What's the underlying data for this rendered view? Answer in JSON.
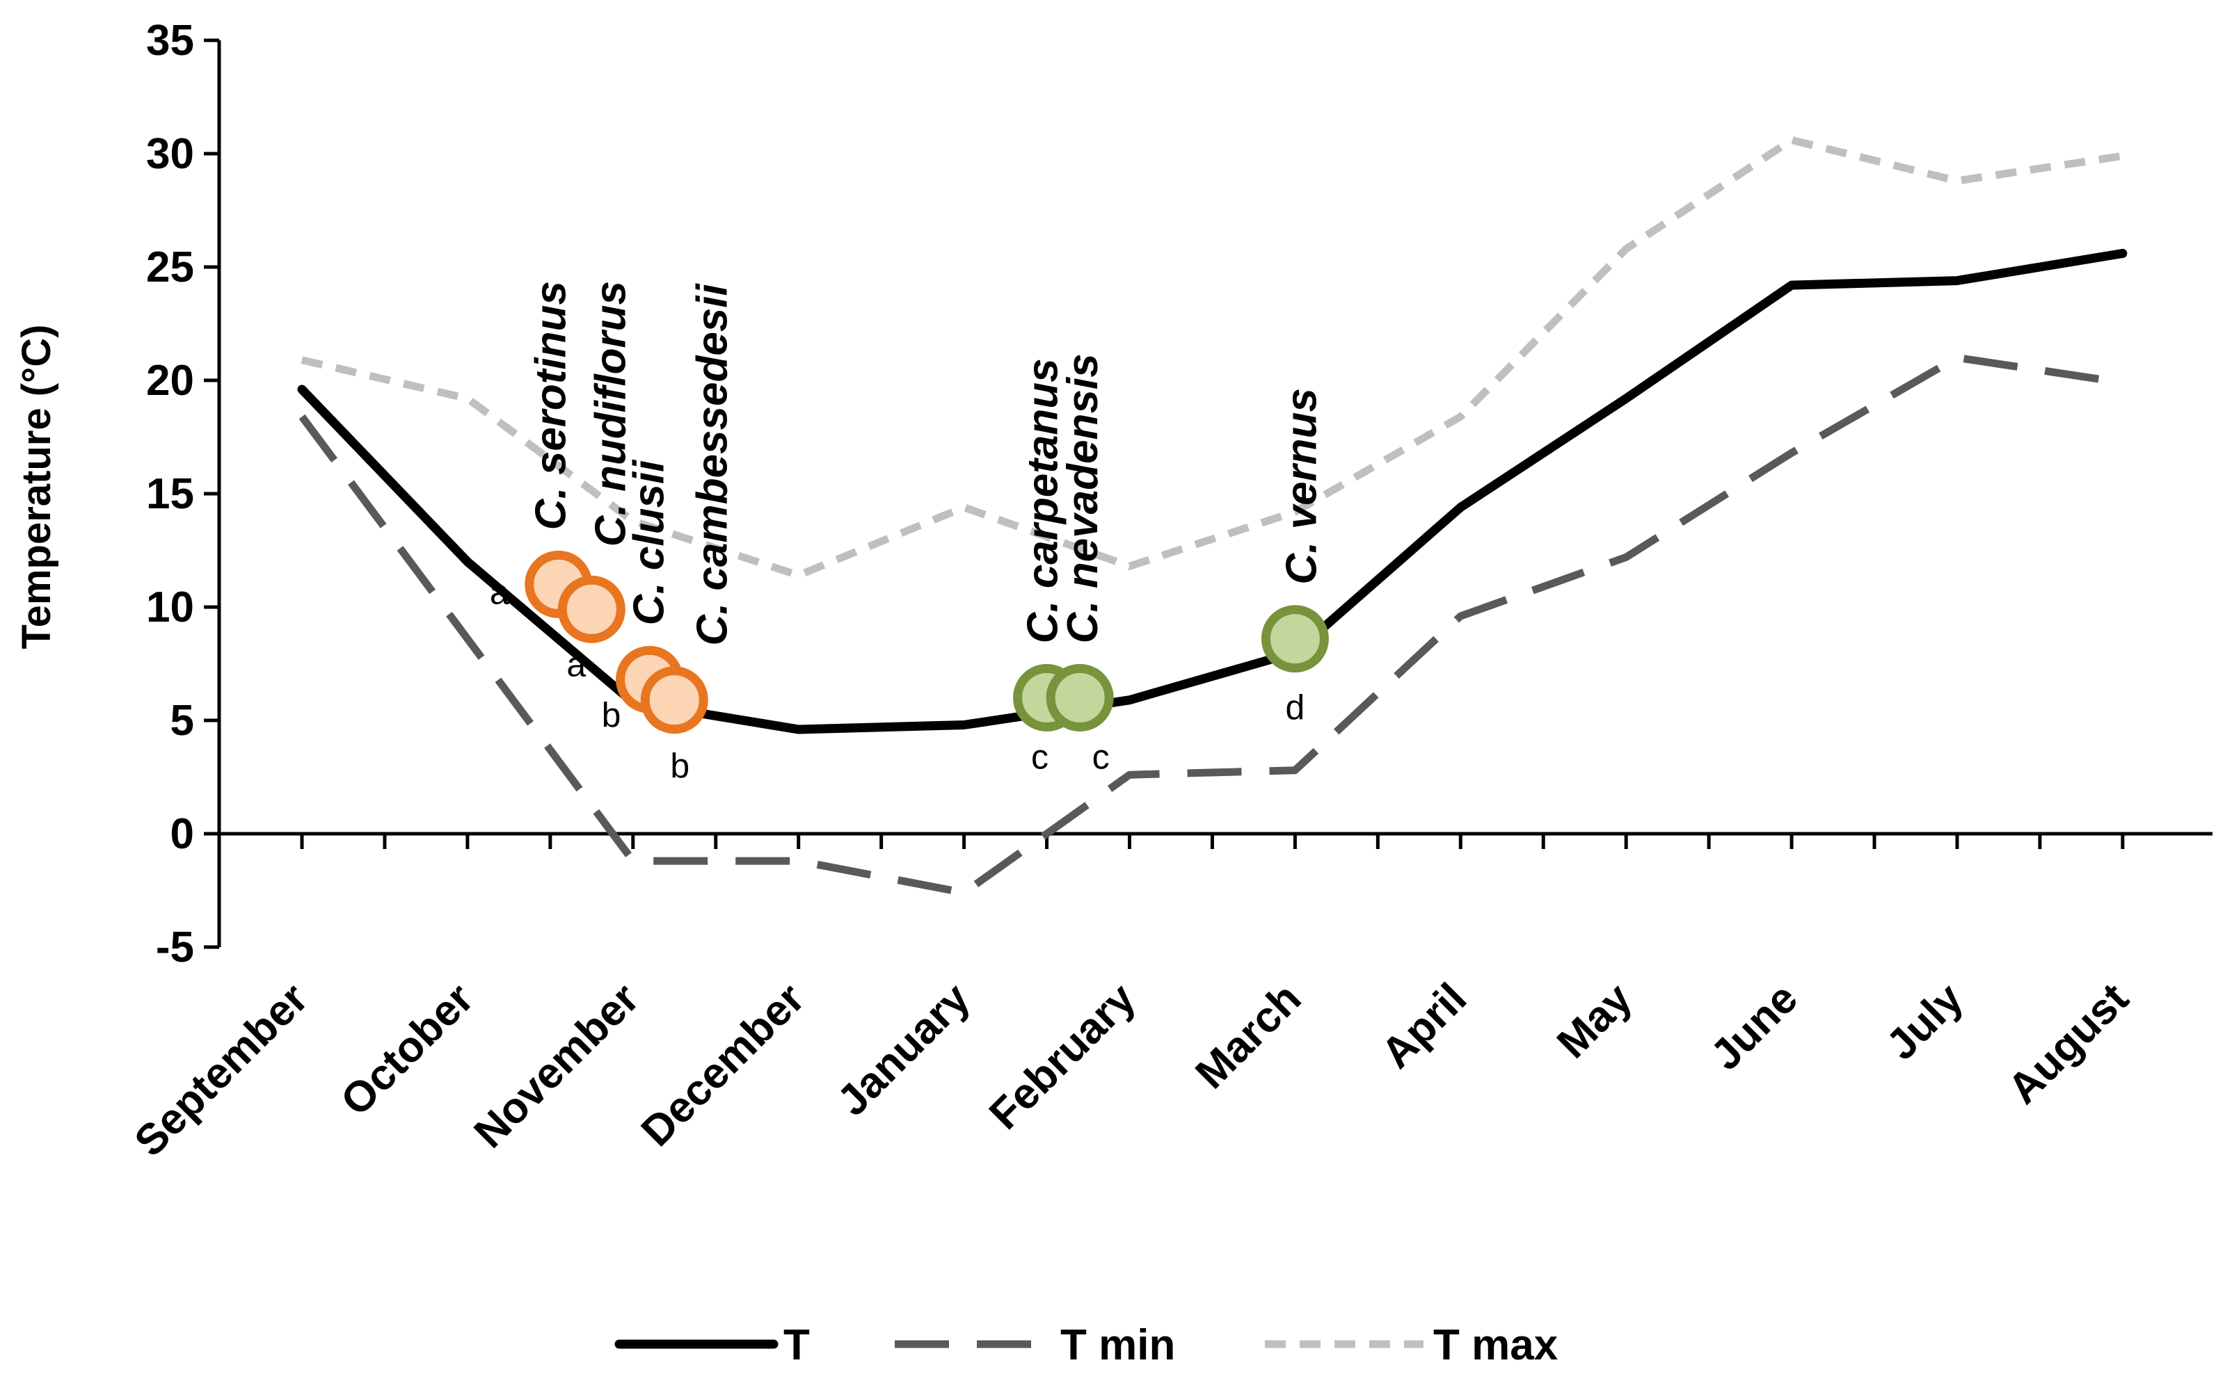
{
  "chart_data": {
    "type": "line",
    "title": "",
    "xlabel": "",
    "ylabel": "Temperature (°C)",
    "ylim": [
      -5,
      35
    ],
    "yticks": [
      -5,
      0,
      5,
      10,
      15,
      20,
      25,
      30,
      35
    ],
    "ytick_labels": [
      "-5",
      "0",
      "5",
      "10",
      "15",
      "20",
      "25",
      "30",
      "35"
    ],
    "grid": false,
    "legend_position": "bottom",
    "categories": [
      "September",
      "October",
      "November",
      "December",
      "January",
      "February",
      "March",
      "April",
      "May",
      "June",
      "July",
      "August"
    ],
    "series": [
      {
        "name": "T",
        "color": "#000000",
        "style": "solid",
        "values": [
          19.6,
          12.0,
          5.8,
          4.6,
          4.8,
          5.9,
          8.0,
          14.4,
          19.2,
          24.2,
          24.4,
          25.6
        ]
      },
      {
        "name": "T min",
        "color": "#595959",
        "style": "long-dash",
        "values": [
          18.4,
          8.6,
          -1.2,
          -1.2,
          -2.6,
          2.6,
          2.8,
          9.6,
          12.2,
          16.8,
          21.0,
          19.9
        ]
      },
      {
        "name": "T max",
        "color": "#bfbfbf",
        "style": "short-dash",
        "values": [
          20.9,
          19.2,
          13.8,
          11.4,
          14.4,
          11.8,
          14.2,
          18.4,
          25.8,
          30.6,
          28.8,
          29.9
        ]
      }
    ],
    "flowering_points": [
      {
        "species": "C. serotinus",
        "x": 1.55,
        "y": 11.0,
        "group": "a",
        "season": "autumn"
      },
      {
        "species": "C. nudiflorus",
        "x": 1.75,
        "y": 9.9,
        "group": "a",
        "season": "autumn"
      },
      {
        "species": "C. clusii",
        "x": 2.1,
        "y": 6.8,
        "group": "b",
        "season": "autumn"
      },
      {
        "species": "C. cambessedesii",
        "x": 2.25,
        "y": 5.9,
        "group": "b",
        "season": "autumn"
      },
      {
        "species": "C. carpetanus",
        "x": 4.5,
        "y": 6.0,
        "group": "c",
        "season": "spring"
      },
      {
        "species": "C. nevadensis",
        "x": 4.7,
        "y": 6.0,
        "group": "c",
        "season": "spring"
      },
      {
        "species": "C. vernus",
        "x": 6.0,
        "y": 8.6,
        "group": "d",
        "season": "spring"
      }
    ],
    "marker_colors": {
      "autumn": {
        "stroke": "#e87620",
        "fill": "#fcd5b5"
      },
      "spring": {
        "stroke": "#77933c",
        "fill": "#c3d69b"
      }
    }
  }
}
